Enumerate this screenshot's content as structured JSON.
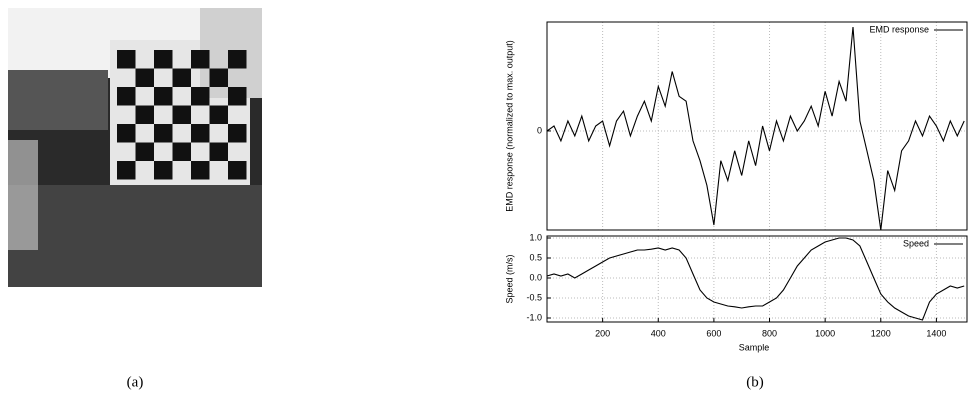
{
  "captions": [
    "(a)",
    "(b)"
  ],
  "chart_data": [
    {
      "type": "line",
      "ylabel": "EMD response (normalized to max. output)",
      "x": [
        0,
        25,
        50,
        75,
        100,
        125,
        150,
        175,
        200,
        225,
        250,
        275,
        300,
        325,
        350,
        375,
        400,
        425,
        450,
        475,
        500,
        525,
        550,
        575,
        600,
        625,
        650,
        675,
        700,
        725,
        750,
        775,
        800,
        825,
        850,
        875,
        900,
        925,
        950,
        975,
        1000,
        1025,
        1050,
        1075,
        1100,
        1125,
        1150,
        1175,
        1200,
        1225,
        1250,
        1275,
        1300,
        1325,
        1350,
        1375,
        1400,
        1425,
        1450,
        1475,
        1500
      ],
      "series": [
        {
          "name": "EMD response",
          "color": "#000000",
          "values": [
            0,
            0.05,
            -0.1,
            0.1,
            -0.05,
            0.15,
            -0.1,
            0.05,
            0.1,
            -0.15,
            0.1,
            0.2,
            -0.05,
            0.15,
            0.3,
            0.1,
            0.45,
            0.25,
            0.6,
            0.35,
            0.3,
            -0.1,
            -0.3,
            -0.55,
            -0.95,
            -0.3,
            -0.5,
            -0.2,
            -0.45,
            -0.1,
            -0.35,
            0.05,
            -0.2,
            0.1,
            -0.1,
            0.15,
            0,
            0.1,
            0.25,
            0.05,
            0.4,
            0.15,
            0.5,
            0.3,
            1.05,
            0.1,
            -0.2,
            -0.5,
            -1,
            -0.4,
            -0.6,
            -0.2,
            -0.1,
            0.1,
            -0.05,
            0.15,
            0.05,
            -0.1,
            0.1,
            -0.05,
            0.1
          ]
        }
      ],
      "xlim": [
        0,
        1510
      ],
      "ylim": [
        -1,
        1.1
      ],
      "yticks": [
        0
      ],
      "grid": true,
      "legend": "upper right"
    },
    {
      "type": "line",
      "xlabel": "Sample",
      "ylabel": "Speed (m/s)",
      "x": [
        0,
        25,
        50,
        75,
        100,
        125,
        150,
        175,
        200,
        225,
        250,
        275,
        300,
        325,
        350,
        375,
        400,
        425,
        450,
        475,
        500,
        525,
        550,
        575,
        600,
        625,
        650,
        675,
        700,
        725,
        750,
        775,
        800,
        825,
        850,
        875,
        900,
        925,
        950,
        975,
        1000,
        1025,
        1050,
        1075,
        1100,
        1125,
        1150,
        1175,
        1200,
        1225,
        1250,
        1275,
        1300,
        1325,
        1350,
        1375,
        1400,
        1425,
        1450,
        1475,
        1500
      ],
      "series": [
        {
          "name": "Speed",
          "color": "#000000",
          "values": [
            0.05,
            0.1,
            0.05,
            0.1,
            0,
            0.1,
            0.2,
            0.3,
            0.4,
            0.5,
            0.55,
            0.6,
            0.65,
            0.7,
            0.7,
            0.72,
            0.75,
            0.7,
            0.75,
            0.7,
            0.5,
            0.1,
            -0.3,
            -0.5,
            -0.6,
            -0.65,
            -0.7,
            -0.72,
            -0.75,
            -0.72,
            -0.7,
            -0.7,
            -0.6,
            -0.5,
            -0.3,
            0,
            0.3,
            0.5,
            0.7,
            0.8,
            0.9,
            0.95,
            1.0,
            1.0,
            0.95,
            0.8,
            0.4,
            0,
            -0.4,
            -0.6,
            -0.75,
            -0.85,
            -0.95,
            -1.0,
            -1.05,
            -0.6,
            -0.4,
            -0.3,
            -0.2,
            -0.25,
            -0.2
          ]
        }
      ],
      "xlim": [
        0,
        1510
      ],
      "ylim": [
        -1.1,
        1.05
      ],
      "xticks": [
        200,
        400,
        600,
        800,
        1000,
        1200,
        1400
      ],
      "yticks": [
        {
          "value": 1,
          "label": "1.0"
        },
        {
          "value": 0.5,
          "label": "0.5"
        },
        {
          "value": 0,
          "label": "0.0"
        },
        {
          "value": -0.5,
          "label": "-0.5"
        },
        {
          "value": -1,
          "label": "-1.0"
        }
      ],
      "grid": true,
      "legend": "upper right"
    }
  ]
}
